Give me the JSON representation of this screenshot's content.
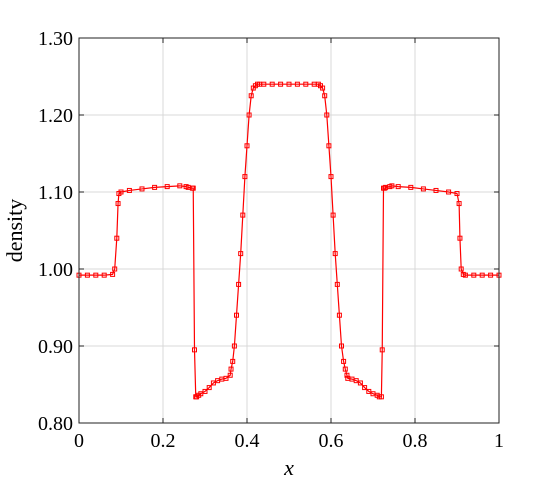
{
  "chart_data": {
    "type": "line",
    "xlabel": "x",
    "ylabel": "density",
    "xlim": [
      0,
      1
    ],
    "ylim": [
      0.8,
      1.3
    ],
    "grid": true,
    "x_ticks": [
      0,
      0.2,
      0.4,
      0.6,
      0.8,
      1
    ],
    "x_tick_labels": [
      "0",
      "0.2",
      "0.4",
      "0.6",
      "0.8",
      "1"
    ],
    "y_ticks": [
      0.8,
      0.9,
      1.0,
      1.1,
      1.2,
      1.3
    ],
    "y_tick_labels": [
      "0.80",
      "0.90",
      "1.00",
      "1.10",
      "1.20",
      "1.30"
    ],
    "series": [
      {
        "color": "#ff0000",
        "marker": "square",
        "x": [
          0.0,
          0.02,
          0.04,
          0.06,
          0.08,
          0.085,
          0.09,
          0.093,
          0.095,
          0.1,
          0.12,
          0.15,
          0.18,
          0.21,
          0.24,
          0.255,
          0.26,
          0.27,
          0.272,
          0.275,
          0.278,
          0.28,
          0.285,
          0.29,
          0.3,
          0.31,
          0.32,
          0.33,
          0.34,
          0.35,
          0.36,
          0.362,
          0.366,
          0.37,
          0.375,
          0.38,
          0.385,
          0.39,
          0.395,
          0.4,
          0.405,
          0.41,
          0.415,
          0.42,
          0.425,
          0.43,
          0.44,
          0.46,
          0.48,
          0.5,
          0.52,
          0.54,
          0.56,
          0.57,
          0.575,
          0.58,
          0.585,
          0.59,
          0.595,
          0.6,
          0.605,
          0.61,
          0.615,
          0.62,
          0.625,
          0.63,
          0.634,
          0.638,
          0.64,
          0.65,
          0.66,
          0.67,
          0.68,
          0.69,
          0.7,
          0.71,
          0.715,
          0.72,
          0.722,
          0.725,
          0.728,
          0.73,
          0.74,
          0.745,
          0.76,
          0.79,
          0.82,
          0.85,
          0.88,
          0.9,
          0.905,
          0.907,
          0.91,
          0.915,
          0.92,
          0.94,
          0.96,
          0.98,
          1.0
        ],
        "y": [
          0.992,
          0.992,
          0.992,
          0.992,
          0.993,
          1.0,
          1.04,
          1.085,
          1.098,
          1.1,
          1.102,
          1.104,
          1.106,
          1.107,
          1.108,
          1.107,
          1.106,
          1.105,
          1.105,
          0.895,
          0.834,
          0.834,
          0.836,
          0.838,
          0.841,
          0.846,
          0.852,
          0.855,
          0.857,
          0.858,
          0.862,
          0.87,
          0.88,
          0.9,
          0.94,
          0.98,
          1.02,
          1.07,
          1.12,
          1.16,
          1.2,
          1.225,
          1.235,
          1.238,
          1.24,
          1.24,
          1.24,
          1.24,
          1.24,
          1.24,
          1.24,
          1.24,
          1.24,
          1.24,
          1.238,
          1.235,
          1.225,
          1.2,
          1.16,
          1.12,
          1.07,
          1.02,
          0.98,
          0.94,
          0.9,
          0.88,
          0.87,
          0.862,
          0.858,
          0.857,
          0.855,
          0.852,
          0.846,
          0.841,
          0.838,
          0.836,
          0.834,
          0.834,
          0.895,
          1.105,
          1.105,
          1.106,
          1.107,
          1.108,
          1.107,
          1.106,
          1.104,
          1.102,
          1.1,
          1.098,
          1.085,
          1.04,
          1.0,
          0.993,
          0.992,
          0.992,
          0.992,
          0.992,
          0.992
        ]
      }
    ]
  }
}
